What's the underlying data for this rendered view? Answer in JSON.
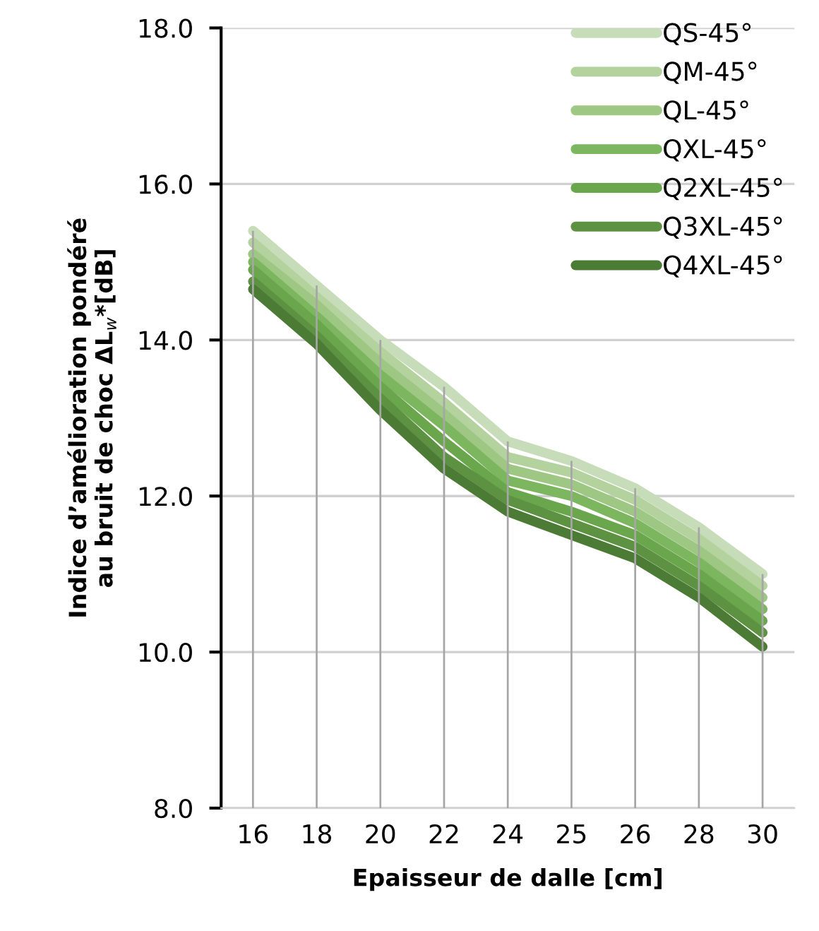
{
  "chart_data": {
    "type": "line",
    "xlabel": "Epaisseur de dalle [cm]",
    "ylabel": "Indice d’amélioration pondéré\nau bruit de choc ΔL$_{w}$*[dB]",
    "categories": [
      "16",
      "18",
      "20",
      "22",
      "24",
      "25",
      "26",
      "28",
      "30"
    ],
    "series": [
      {
        "type": "bar",
        "color": "#a6a6a6",
        "values": [
          15.4,
          14.7,
          14.0,
          13.4,
          12.7,
          12.45,
          12.1,
          11.6,
          11.0
        ]
      },
      {
        "name": "QS-45°",
        "color": "#c7dcb8",
        "values": [
          15.4,
          14.7,
          14.0,
          13.4,
          12.7,
          12.45,
          12.1,
          11.6,
          11.0
        ]
      },
      {
        "name": "QM-45°",
        "color": "#b3d29e",
        "values": [
          15.25,
          14.55,
          13.85,
          13.2,
          12.5,
          12.3,
          11.95,
          11.45,
          10.85
        ]
      },
      {
        "name": "QL-45°",
        "color": "#9dc783",
        "values": [
          15.1,
          14.45,
          13.7,
          13.05,
          12.35,
          12.15,
          11.8,
          11.3,
          10.7
        ]
      },
      {
        "name": "QXL-45°",
        "color": "#7cb65e",
        "values": [
          15.0,
          14.3,
          13.55,
          12.9,
          12.2,
          12.0,
          11.65,
          11.15,
          10.55
        ]
      },
      {
        "name": "Q2XL-45°",
        "color": "#6aa64c",
        "values": [
          14.9,
          14.2,
          13.4,
          12.7,
          12.05,
          11.8,
          11.5,
          11.0,
          10.4
        ]
      },
      {
        "name": "Q3XL-45°",
        "color": "#5d9242",
        "values": [
          14.75,
          14.05,
          13.25,
          12.5,
          11.95,
          11.65,
          11.35,
          10.85,
          10.25
        ]
      },
      {
        "name": "Q4XL-45°",
        "color": "#4c7b35",
        "values": [
          14.65,
          13.95,
          13.1,
          12.35,
          11.8,
          11.5,
          11.2,
          10.7,
          10.07
        ]
      }
    ],
    "ylim": [
      8,
      18
    ],
    "yticks": [
      {
        "value": 8,
        "label": "8.0"
      },
      {
        "value": 10,
        "label": "10.0"
      },
      {
        "value": 12,
        "label": "12.0"
      },
      {
        "value": 14,
        "label": "14.0"
      },
      {
        "value": 16,
        "label": "16.0"
      },
      {
        "value": 18,
        "label": "18.0"
      }
    ],
    "grid": "y",
    "legend": "top right",
    "marker": "none",
    "line_style": "solid"
  }
}
